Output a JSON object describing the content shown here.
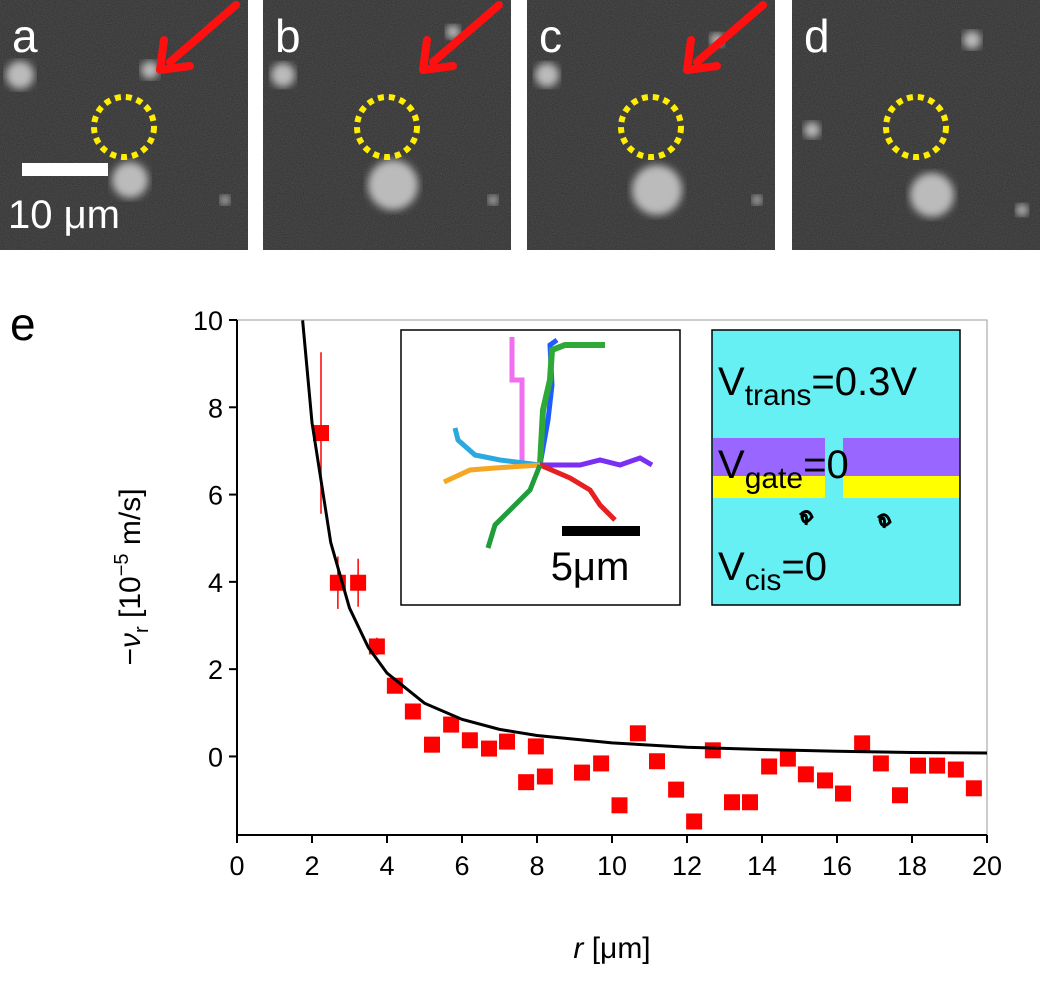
{
  "panels": [
    {
      "label": "a",
      "arrow": true
    },
    {
      "label": "b",
      "arrow": true
    },
    {
      "label": "c",
      "arrow": true
    },
    {
      "label": "d",
      "arrow": false
    }
  ],
  "scale_bar_label": "10 μm",
  "chart_data": {
    "type": "scatter",
    "panel_label": "e",
    "xlabel": {
      "italic": "r",
      "rest": " [μm]"
    },
    "ylabel": {
      "prefix": "−",
      "var": "ν",
      "sub": "r",
      "mid": " [10",
      "sup": "−5",
      "suffix": " m/s]"
    },
    "xlim": [
      0,
      20
    ],
    "ylim": [
      -1.8,
      10
    ],
    "xticks": [
      0,
      2,
      4,
      6,
      8,
      10,
      12,
      14,
      16,
      18,
      20
    ],
    "yticks": [
      0,
      2,
      4,
      6,
      8,
      10
    ],
    "color": "#ff0000",
    "x": [
      2.24,
      2.69,
      3.23,
      3.73,
      4.21,
      4.69,
      5.2,
      5.71,
      6.21,
      6.72,
      7.2,
      7.71,
      7.97,
      8.21,
      9.2,
      9.71,
      10.2,
      10.69,
      11.2,
      11.71,
      12.19,
      12.69,
      13.2,
      13.68,
      14.19,
      14.69,
      15.17,
      15.68,
      16.16,
      16.67,
      17.17,
      17.68,
      18.16,
      18.67,
      19.17,
      19.65
    ],
    "values": [
      7.41,
      3.98,
      3.98,
      2.52,
      1.62,
      1.03,
      0.27,
      0.73,
      0.37,
      0.18,
      0.34,
      -0.59,
      0.23,
      -0.46,
      -0.37,
      -0.16,
      -1.12,
      0.53,
      -0.11,
      -0.76,
      -1.49,
      0.14,
      -1.05,
      -1.05,
      -0.23,
      -0.05,
      -0.41,
      -0.55,
      -0.85,
      0.3,
      -0.16,
      -0.89,
      -0.21,
      -0.21,
      -0.3,
      -0.73
    ],
    "errors": [
      1.85,
      0.6,
      0.55,
      0.2,
      null,
      null,
      null,
      null,
      null,
      null,
      null,
      null,
      null,
      null,
      null,
      null,
      null,
      null,
      null,
      null,
      null,
      null,
      null,
      null,
      null,
      null,
      null,
      null,
      null,
      null,
      null,
      null,
      null,
      null,
      null,
      null
    ],
    "fit": {
      "color": "#000000",
      "x": [
        1.75,
        2,
        2.5,
        3,
        3.5,
        4,
        5,
        6,
        7,
        8,
        10,
        12,
        14,
        16,
        18,
        20
      ],
      "values": [
        9.99,
        7.65,
        4.9,
        3.4,
        2.5,
        1.91,
        1.22,
        0.85,
        0.62,
        0.48,
        0.31,
        0.21,
        0.16,
        0.12,
        0.09,
        0.08
      ]
    }
  },
  "inset_trajectories": {
    "scale_label": "5μm"
  },
  "inset_voltages": {
    "trans": {
      "main": "V",
      "sub": "trans",
      "rest": "=0.3V"
    },
    "gate": {
      "main": "V",
      "sub": "gate",
      "rest": "=0"
    },
    "cis": {
      "main": "V",
      "sub": "cis",
      "rest": "=0"
    }
  }
}
